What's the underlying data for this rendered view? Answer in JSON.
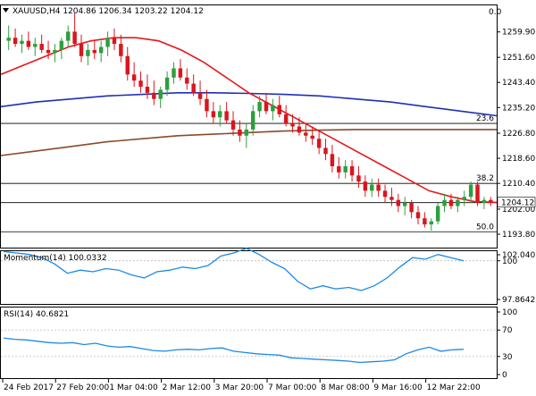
{
  "header": {
    "symbol_line": "XAUUSD,H4  1204.86 1206.34 1203.22 1204.12",
    "dropdown_icon": "triangle-down-icon"
  },
  "colors": {
    "bull_candle": "#2e9e3f",
    "bear_candle": "#d9161c",
    "sma_fast": "#e31a1c",
    "sma_mid": "#1f2fb5",
    "sma_slow": "#8b4a2b",
    "indicator_line": "#1e88e5",
    "fib_line": "#000000",
    "grid": "#b0b0b0",
    "price_tag_bg": "#ffffff"
  },
  "chart_data": [
    {
      "type": "candlestick",
      "title": "XAUUSD,H4",
      "ohlc_readout": {
        "open": 1204.86,
        "high": 1206.34,
        "low": 1203.22,
        "close": 1204.12
      },
      "ylim": [
        1190,
        1268
      ],
      "y_ticks": [
        "1259.90",
        "1251.60",
        "1243.40",
        "1235.20",
        "1226.80",
        "1218.60",
        "1210.40",
        "1202.00",
        "1193.80"
      ],
      "current_price_label": "1204.12",
      "current_price": 1204.12,
      "fib_levels": [
        {
          "label": "0.0",
          "value": 1268.5
        },
        {
          "label": "23.6",
          "value": 1230.0
        },
        {
          "label": "38.2",
          "value": 1210.4
        },
        {
          "label": "50.0",
          "value": 1194.6
        }
      ],
      "corner_label": "0.0",
      "x_labels": [
        "24 Feb 2017",
        "27 Feb 20:00",
        "1 Mar 04:00",
        "2 Mar 12:00",
        "3 Mar 20:00",
        "7 Mar 00:00",
        "8 Mar 08:00",
        "9 Mar 16:00",
        "12 Mar 22:00"
      ],
      "candles": [
        [
          1257,
          1262,
          1254,
          1258
        ],
        [
          1258,
          1261,
          1255,
          1256
        ],
        [
          1256,
          1259,
          1253,
          1257
        ],
        [
          1257,
          1260,
          1254,
          1255
        ],
        [
          1255,
          1258,
          1252,
          1256
        ],
        [
          1256,
          1259,
          1253,
          1254
        ],
        [
          1254,
          1257,
          1251,
          1253
        ],
        [
          1253,
          1256,
          1250,
          1254
        ],
        [
          1254,
          1258,
          1251,
          1257
        ],
        [
          1257,
          1262,
          1255,
          1260
        ],
        [
          1260,
          1266,
          1255,
          1256
        ],
        [
          1256,
          1259,
          1250,
          1252
        ],
        [
          1252,
          1256,
          1249,
          1254
        ],
        [
          1254,
          1257,
          1251,
          1253
        ],
        [
          1253,
          1257,
          1250,
          1255
        ],
        [
          1255,
          1260,
          1252,
          1258
        ],
        [
          1258,
          1261,
          1254,
          1256
        ],
        [
          1256,
          1259,
          1250,
          1252
        ],
        [
          1252,
          1255,
          1244,
          1246
        ],
        [
          1246,
          1250,
          1242,
          1244
        ],
        [
          1244,
          1247,
          1240,
          1242
        ],
        [
          1242,
          1246,
          1238,
          1240
        ],
        [
          1240,
          1244,
          1236,
          1238
        ],
        [
          1238,
          1242,
          1235,
          1241
        ],
        [
          1241,
          1247,
          1239,
          1245
        ],
        [
          1245,
          1250,
          1243,
          1248
        ],
        [
          1248,
          1251,
          1244,
          1245
        ],
        [
          1245,
          1248,
          1241,
          1243
        ],
        [
          1243,
          1246,
          1239,
          1240
        ],
        [
          1240,
          1244,
          1236,
          1238
        ],
        [
          1238,
          1241,
          1232,
          1234
        ],
        [
          1234,
          1237,
          1230,
          1232
        ],
        [
          1232,
          1236,
          1229,
          1234
        ],
        [
          1234,
          1237,
          1230,
          1231
        ],
        [
          1231,
          1234,
          1226,
          1228
        ],
        [
          1228,
          1231,
          1224,
          1226
        ],
        [
          1226,
          1230,
          1222,
          1228
        ],
        [
          1228,
          1236,
          1226,
          1234
        ],
        [
          1234,
          1239,
          1232,
          1237
        ],
        [
          1237,
          1240,
          1233,
          1234
        ],
        [
          1234,
          1238,
          1231,
          1236
        ],
        [
          1236,
          1239,
          1232,
          1233
        ],
        [
          1233,
          1236,
          1229,
          1230
        ],
        [
          1230,
          1233,
          1227,
          1229
        ],
        [
          1229,
          1232,
          1226,
          1227
        ],
        [
          1227,
          1230,
          1224,
          1226
        ],
        [
          1226,
          1229,
          1223,
          1225
        ],
        [
          1225,
          1228,
          1220,
          1222
        ],
        [
          1222,
          1225,
          1218,
          1220
        ],
        [
          1220,
          1223,
          1214,
          1216
        ],
        [
          1216,
          1219,
          1212,
          1214
        ],
        [
          1214,
          1218,
          1212,
          1216
        ],
        [
          1216,
          1218,
          1211,
          1213
        ],
        [
          1213,
          1216,
          1209,
          1211
        ],
        [
          1211,
          1213,
          1206,
          1208
        ],
        [
          1208,
          1212,
          1206,
          1210
        ],
        [
          1210,
          1212,
          1206,
          1208
        ],
        [
          1208,
          1210,
          1204,
          1206
        ],
        [
          1206,
          1209,
          1203,
          1205
        ],
        [
          1205,
          1207,
          1201,
          1203
        ],
        [
          1203,
          1206,
          1200,
          1204
        ],
        [
          1204,
          1205,
          1199,
          1201
        ],
        [
          1201,
          1203,
          1197,
          1199
        ],
        [
          1199,
          1201,
          1196,
          1197
        ],
        [
          1197,
          1199,
          1195,
          1198
        ],
        [
          1198,
          1204,
          1197,
          1203
        ],
        [
          1203,
          1207,
          1201,
          1205
        ],
        [
          1205,
          1207,
          1202,
          1203
        ],
        [
          1203,
          1206,
          1201,
          1205
        ],
        [
          1205,
          1208,
          1203,
          1206
        ],
        [
          1206,
          1211,
          1204,
          1210
        ],
        [
          1210,
          1211,
          1203,
          1204
        ],
        [
          1204,
          1206,
          1202,
          1205
        ],
        [
          1205,
          1206,
          1203,
          1204
        ]
      ],
      "sma_fast_values": [
        1246,
        1249,
        1252,
        1255,
        1257,
        1258,
        1258,
        1257,
        1254,
        1250,
        1245,
        1240,
        1236,
        1232,
        1228,
        1224,
        1220,
        1216,
        1212,
        1208,
        1206,
        1204.5,
        1204.2
      ],
      "sma_mid_values": [
        1235.5,
        1237,
        1238,
        1239,
        1239.5,
        1240,
        1240,
        1239.8,
        1239.5,
        1239,
        1238,
        1237,
        1235.5,
        1234,
        1232.5
      ],
      "sma_slow_values": [
        1219.5,
        1221,
        1222.5,
        1224,
        1225,
        1226,
        1226.5,
        1227,
        1227.5,
        1227.8,
        1228,
        1228,
        1228,
        1228,
        1228
      ]
    },
    {
      "type": "line",
      "title": "Momentum(14) 100.0332",
      "ylim": [
        97.3,
        100.5
      ],
      "y_ticks": [
        "102.0402",
        "100",
        "97.8642"
      ],
      "reference_level": 100,
      "values": [
        100.6,
        100.5,
        100.4,
        100.2,
        99.8,
        99.2,
        99.4,
        99.3,
        99.5,
        99.4,
        99.1,
        98.9,
        99.3,
        99.4,
        99.6,
        99.5,
        99.7,
        100.3,
        100.5,
        100.8,
        100.4,
        99.9,
        99.5,
        98.7,
        98.2,
        98.4,
        98.2,
        98.3,
        98.1,
        98.4,
        98.9,
        99.6,
        100.2,
        100.1,
        100.4,
        100.2,
        100.0
      ]
    },
    {
      "type": "line",
      "title": "RSI(14) 40.6821",
      "ylim": [
        0,
        100
      ],
      "y_ticks": [
        "100",
        "70",
        "30",
        "0"
      ],
      "values": [
        58,
        56,
        55,
        53,
        51,
        50,
        51,
        48,
        50,
        46,
        44,
        45,
        42,
        39,
        38,
        40,
        41,
        40,
        42,
        43,
        38,
        36,
        34,
        33,
        32,
        28,
        27,
        26,
        25,
        24,
        23,
        21,
        22,
        23,
        25,
        34,
        40,
        44,
        38,
        40,
        41
      ]
    }
  ]
}
